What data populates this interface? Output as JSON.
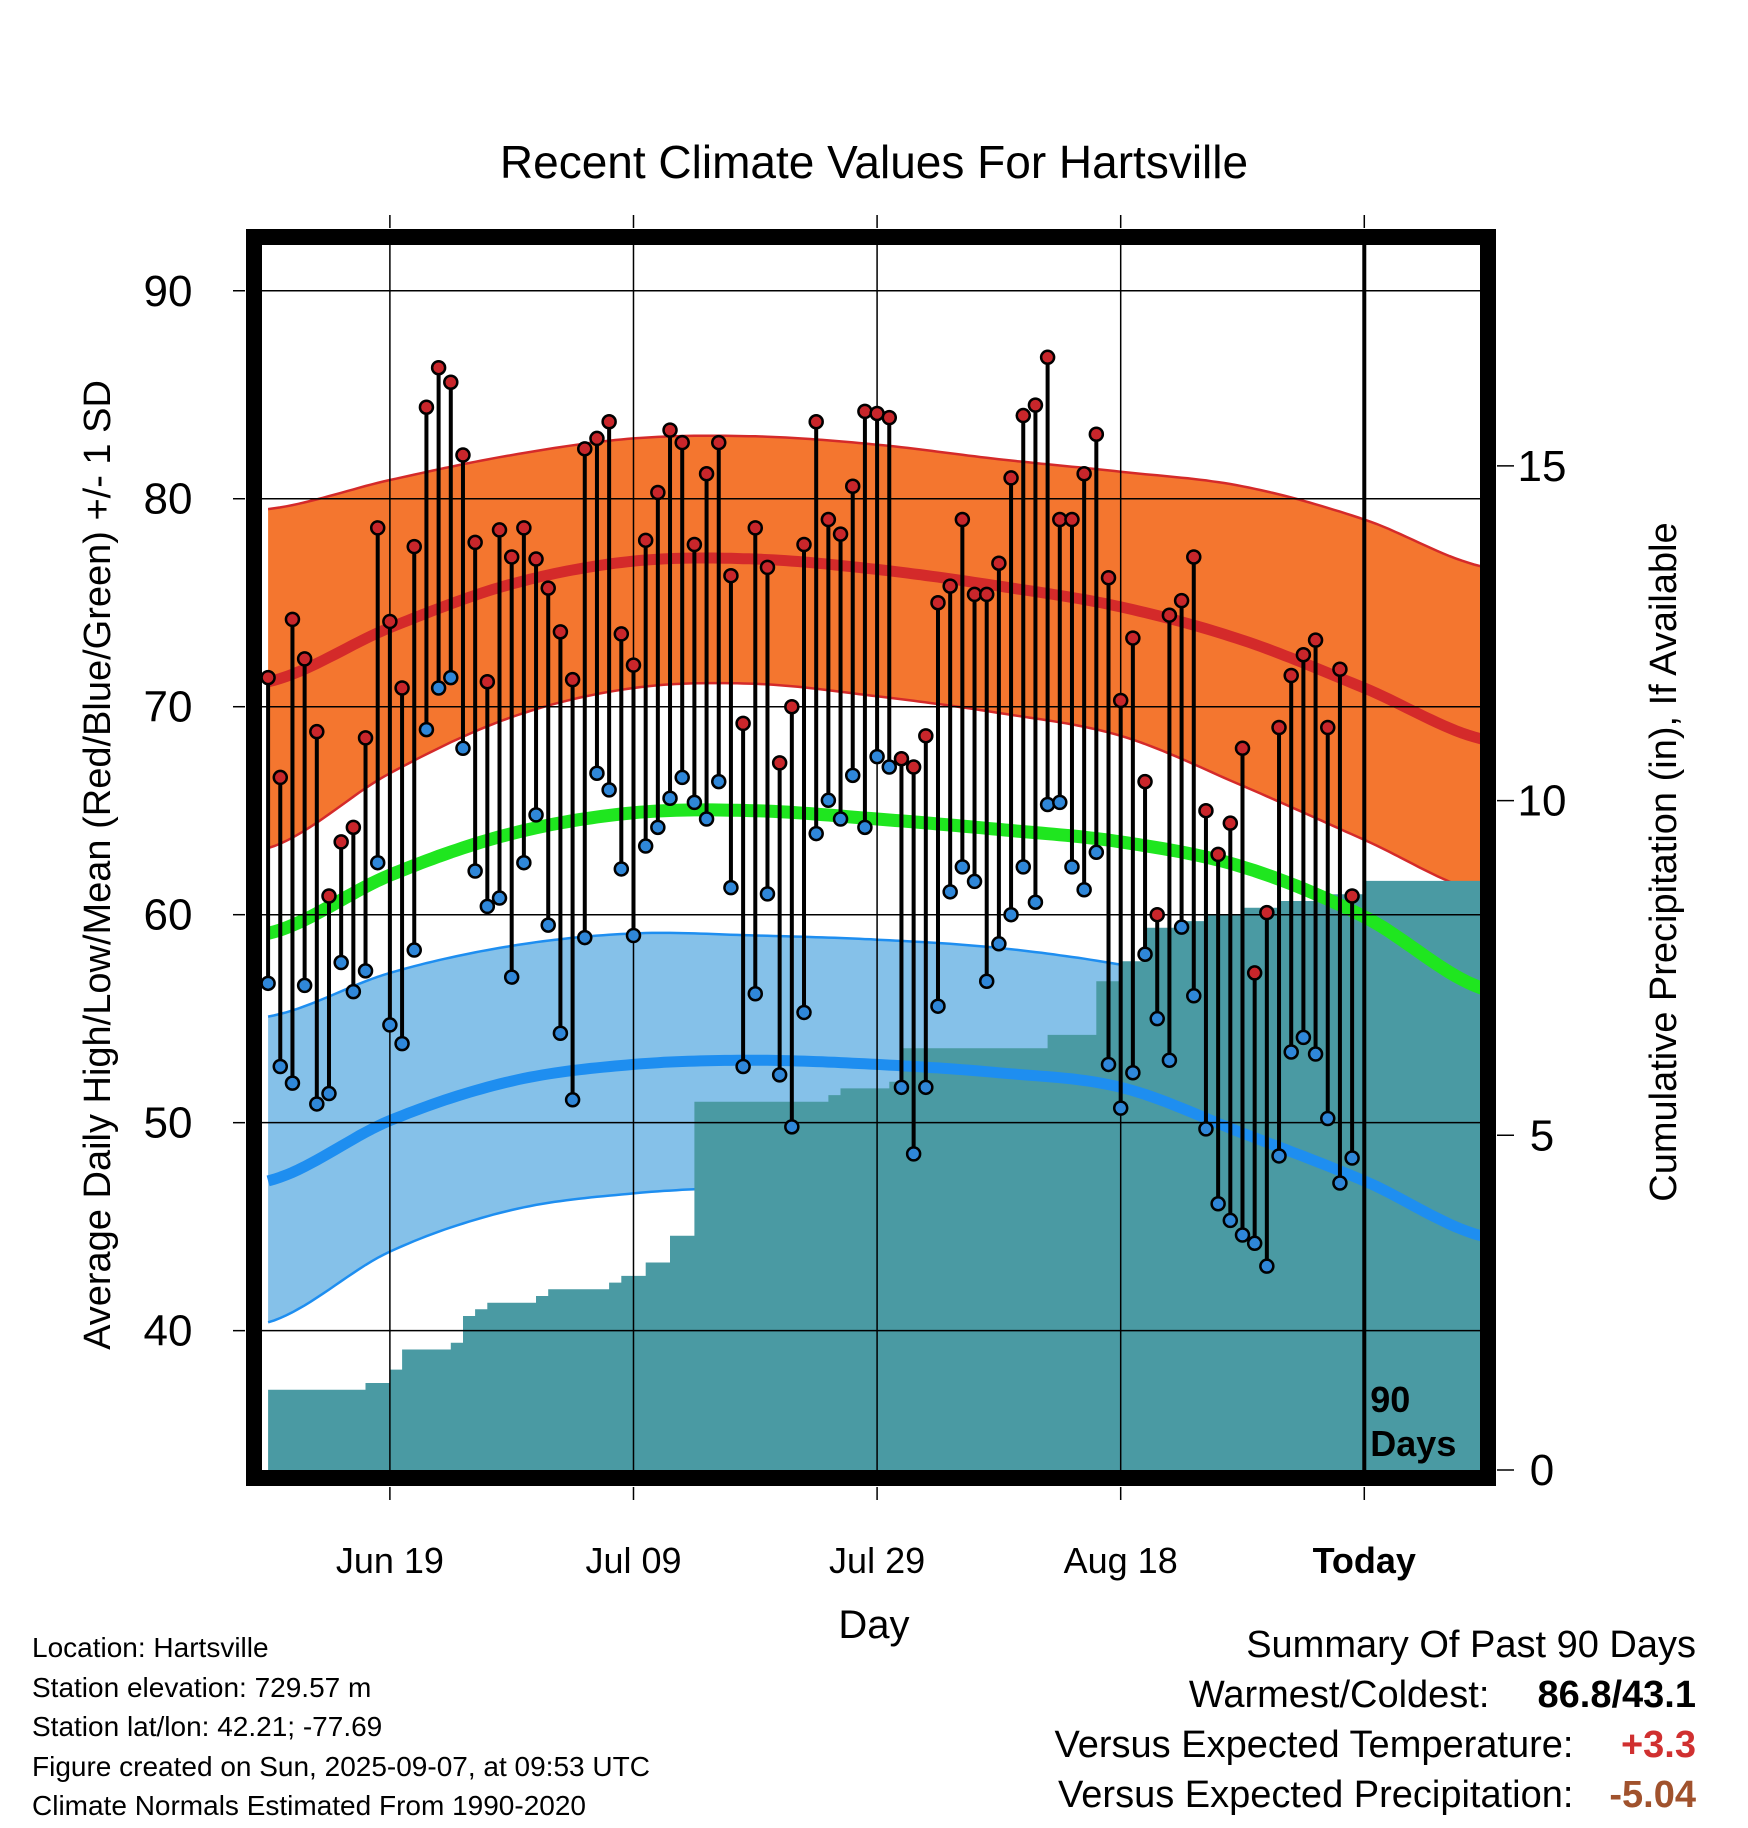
{
  "chart_data": {
    "type": "line",
    "title": "Recent Climate Values For Hartsville",
    "xlabel": "Day",
    "ylabel": "Average Daily High/Low/Mean (Red/Blue/Green) +/- 1 SD",
    "y2label": "Cumulative Precipitation (in), If Available",
    "ylim": [
      33.3,
      92.2
    ],
    "y_ticks": [
      40,
      50,
      60,
      70,
      80,
      90
    ],
    "y2lim": [
      0,
      18.3
    ],
    "y2_ticks": [
      0,
      5,
      10,
      15
    ],
    "xlim": [
      -0.5,
      99.5
    ],
    "x_ticks": [
      {
        "day": 10,
        "label": "Jun 19"
      },
      {
        "day": 30,
        "label": "Jul 09"
      },
      {
        "day": 50,
        "label": "Jul 29"
      },
      {
        "day": 70,
        "label": "Aug 18"
      },
      {
        "day": 90,
        "label": "Today"
      }
    ],
    "today_marker": {
      "day": 90,
      "label_line1": "90",
      "label_line2": "Days"
    },
    "grid": true,
    "colors": {
      "high_band": "#f4762f",
      "high_line": "#d42a2a",
      "low_band": "#85c1e9",
      "low_line": "#1e8ef0",
      "mean_line": "#1fe61f",
      "precip": "#4a9aa3",
      "high_dot": "#c9262b",
      "low_dot": "#2f87d9",
      "warm_value": "#d03030",
      "precip_value": "#a0522d"
    },
    "normals": {
      "days": [
        0,
        10,
        20,
        30,
        40,
        50,
        60,
        70,
        80,
        90,
        100
      ],
      "high_mean": [
        71.2,
        73.8,
        75.9,
        77.0,
        77.1,
        76.6,
        75.8,
        74.8,
        73.2,
        70.9,
        68.4
      ],
      "high_upper": [
        79.5,
        80.9,
        82.1,
        82.9,
        83.0,
        82.6,
        81.9,
        81.3,
        80.6,
        79.0,
        76.7
      ],
      "high_lower": [
        63.2,
        66.8,
        69.5,
        70.9,
        71.1,
        70.5,
        69.7,
        68.6,
        66.2,
        63.6,
        61.0
      ],
      "mean": [
        59.1,
        61.9,
        63.9,
        64.9,
        65.0,
        64.6,
        64.1,
        63.5,
        62.3,
        59.9,
        56.4
      ],
      "low_mean": [
        47.2,
        50.1,
        52.0,
        52.8,
        53.0,
        52.8,
        52.4,
        51.7,
        49.5,
        47.2,
        44.5
      ],
      "low_upper": [
        55.1,
        57.2,
        58.5,
        59.1,
        59.0,
        58.8,
        58.4,
        57.6,
        56.4,
        54.6,
        52.3
      ],
      "low_lower": [
        40.4,
        43.8,
        45.8,
        46.6,
        46.9,
        46.9,
        46.4,
        45.4,
        43.2,
        41.1,
        38.0
      ]
    },
    "series": [
      {
        "name": "High",
        "values": [
          71.4,
          66.6,
          74.2,
          72.3,
          68.8,
          60.9,
          63.5,
          64.2,
          68.5,
          78.6,
          74.1,
          70.9,
          77.7,
          84.4,
          86.3,
          85.6,
          82.1,
          77.9,
          71.2,
          78.5,
          77.2,
          78.6,
          77.1,
          75.7,
          73.6,
          71.3,
          82.4,
          82.9,
          83.7,
          73.5,
          72.0,
          78.0,
          80.3,
          83.3,
          82.7,
          77.8,
          81.2,
          82.7,
          76.3,
          69.2,
          78.6,
          76.7,
          67.3,
          70.0,
          77.8,
          83.7,
          79.0,
          78.3,
          80.6,
          84.2,
          84.1,
          83.9,
          67.5,
          67.1,
          68.6,
          75.0,
          75.8,
          79.0,
          75.4,
          75.4,
          76.9,
          81.0,
          84.0,
          84.5,
          86.8,
          79.0,
          79.0,
          81.2,
          83.1,
          76.2,
          70.3,
          73.3,
          66.4,
          60.0,
          74.4,
          75.1,
          77.2,
          65.0,
          62.9,
          64.4,
          68.0,
          57.2,
          60.1,
          69.0,
          71.5,
          72.5,
          73.2,
          69.0,
          71.8,
          60.9
        ]
      },
      {
        "name": "Low",
        "values": [
          56.7,
          52.7,
          51.9,
          56.6,
          50.9,
          51.4,
          57.7,
          56.3,
          57.3,
          62.5,
          54.7,
          53.8,
          58.3,
          68.9,
          70.9,
          71.4,
          68.0,
          62.1,
          60.4,
          60.8,
          57.0,
          62.5,
          64.8,
          59.5,
          54.3,
          51.1,
          58.9,
          66.8,
          66.0,
          62.2,
          59.0,
          63.3,
          64.2,
          65.6,
          66.6,
          65.4,
          64.6,
          66.4,
          61.3,
          52.7,
          56.2,
          61.0,
          52.3,
          49.8,
          55.3,
          63.9,
          65.5,
          64.6,
          66.7,
          64.2,
          67.6,
          67.1,
          51.7,
          48.5,
          51.7,
          55.6,
          61.1,
          62.3,
          61.6,
          56.8,
          58.6,
          60.0,
          62.3,
          60.6,
          65.3,
          65.4,
          62.3,
          61.2,
          63.0,
          52.8,
          50.7,
          52.4,
          58.1,
          55.0,
          53.0,
          59.4,
          56.1,
          49.7,
          46.1,
          45.3,
          44.6,
          44.2,
          43.1,
          48.4,
          53.4,
          54.1,
          53.3,
          50.2,
          47.1,
          48.3
        ]
      },
      {
        "name": "Cumulative Precipitation",
        "x": [
          0,
          7,
          8,
          9,
          10,
          11,
          15,
          16,
          17,
          18,
          22,
          23,
          28,
          29,
          30,
          31,
          32,
          33,
          34,
          35,
          36,
          37,
          46,
          47,
          48,
          49,
          50,
          51,
          52,
          53,
          63,
          64,
          65,
          66,
          67,
          68,
          69,
          70,
          71,
          72,
          73,
          74,
          75,
          76,
          77,
          78,
          79,
          80,
          81,
          82,
          83,
          84,
          86,
          87,
          88,
          90,
          100
        ],
        "values": [
          1.2,
          1.2,
          1.3,
          1.3,
          1.5,
          1.8,
          1.9,
          2.3,
          2.4,
          2.5,
          2.6,
          2.7,
          2.8,
          2.9,
          2.9,
          3.1,
          3.1,
          3.5,
          3.5,
          5.5,
          5.5,
          5.5,
          5.6,
          5.7,
          5.7,
          5.7,
          5.7,
          5.8,
          6.3,
          6.3,
          6.3,
          6.5,
          6.5,
          6.5,
          6.5,
          7.3,
          7.3,
          7.6,
          7.6,
          8.1,
          8.1,
          8.1,
          8.2,
          8.2,
          8.3,
          8.3,
          8.3,
          8.4,
          8.4,
          8.4,
          8.5,
          8.5,
          8.5,
          8.6,
          8.6,
          8.8,
          8.8
        ]
      }
    ]
  },
  "footer": {
    "location": "Location: Hartsville",
    "elevation": "Station elevation: 729.57 m",
    "latlon": "Station lat/lon: 42.21; -77.69",
    "created": "Figure created on Sun, 2025-09-07, at 09:53 UTC",
    "normals": "Climate Normals Estimated From 1990-2020"
  },
  "summary": {
    "title": "Summary Of Past 90 Days",
    "warm_cold_label": "Warmest/Coldest:",
    "warm_cold_value": "86.8/43.1",
    "temp_label": "Versus Expected Temperature:",
    "temp_value": "+3.3",
    "precip_label": "Versus Expected Precipitation:",
    "precip_value": "-5.04"
  }
}
